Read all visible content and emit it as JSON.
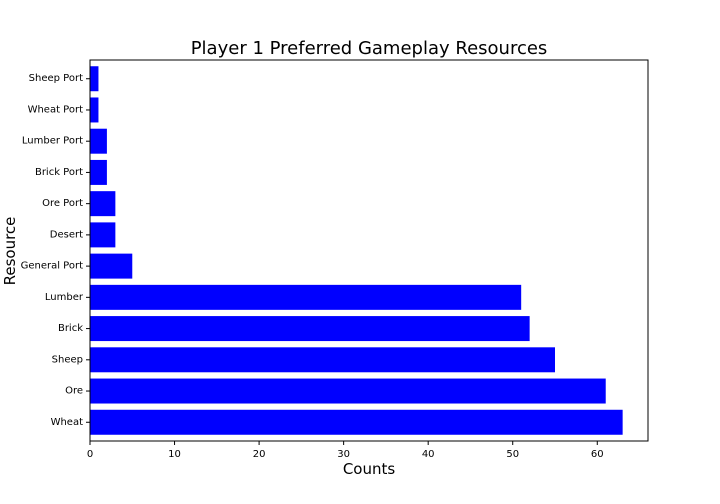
{
  "chart_data": {
    "type": "bar",
    "orientation": "horizontal",
    "title": "Player 1 Preferred Gameplay Resources",
    "xlabel": "Counts",
    "ylabel": "Resource",
    "categories": [
      "Wheat",
      "Ore",
      "Sheep",
      "Brick",
      "Lumber",
      "General Port",
      "Desert",
      "Ore Port",
      "Brick Port",
      "Lumber Port",
      "Wheat Port",
      "Sheep Port"
    ],
    "values": [
      63,
      61,
      55,
      52,
      51,
      5,
      3,
      3,
      2,
      2,
      1,
      1
    ],
    "xlim": [
      0,
      66
    ],
    "xticks": [
      0,
      10,
      20,
      30,
      40,
      50,
      60
    ],
    "grid": false,
    "bar_color": "#0000ff"
  }
}
